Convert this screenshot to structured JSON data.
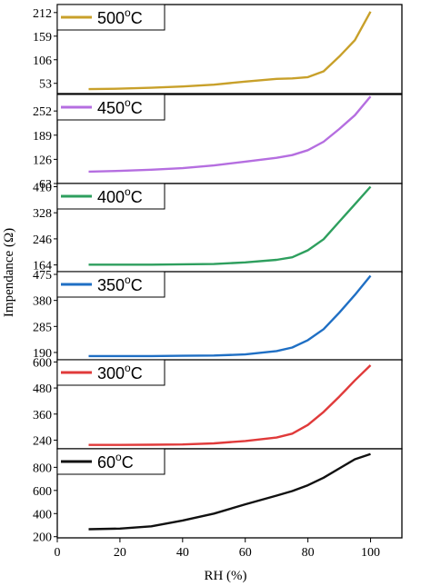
{
  "chart_data": {
    "type": "line",
    "layout": "stacked-panels",
    "xlabel": "RH (%)",
    "ylabel": "Impendance (Ω)",
    "xlim": [
      0,
      110
    ],
    "xticks": [
      0,
      20,
      40,
      60,
      80,
      100
    ],
    "x": [
      10,
      20,
      30,
      40,
      50,
      60,
      70,
      75,
      80,
      85,
      90,
      95,
      100
    ],
    "panels": [
      {
        "name": "500°C",
        "legend": {
          "base": "500",
          "unit_sup": "o",
          "unit": "C"
        },
        "color": "#c8a02a",
        "ylim": [
          30,
          230
        ],
        "yticks": [
          53,
          106,
          159,
          212
        ],
        "values": [
          40,
          41,
          43,
          46,
          50,
          57,
          63,
          64,
          67,
          80,
          113,
          150,
          214
        ]
      },
      {
        "name": "450°C",
        "legend": {
          "base": "450",
          "unit_sup": "o",
          "unit": "C"
        },
        "color": "#b56ee0",
        "ylim": [
          63,
          295
        ],
        "yticks": [
          63,
          126,
          189,
          252
        ],
        "values": [
          94,
          96,
          99,
          103,
          110,
          120,
          130,
          137,
          150,
          172,
          205,
          241,
          290
        ]
      },
      {
        "name": "400°C",
        "legend": {
          "base": "400",
          "unit_sup": "o",
          "unit": "C"
        },
        "color": "#2e9f5e",
        "ylim": [
          140,
          420
        ],
        "yticks": [
          164,
          246,
          328,
          410
        ],
        "values": [
          165,
          165,
          165,
          166,
          167,
          172,
          180,
          188,
          210,
          245,
          300,
          355,
          410
        ]
      },
      {
        "name": "350°C",
        "legend": {
          "base": "350",
          "unit_sup": "o",
          "unit": "C"
        },
        "color": "#1f6fc4",
        "ylim": [
          160,
          485
        ],
        "yticks": [
          190,
          285,
          380,
          475
        ],
        "values": [
          177,
          177,
          177,
          178,
          179,
          183,
          195,
          208,
          235,
          275,
          335,
          400,
          470
        ]
      },
      {
        "name": "300°C",
        "legend": {
          "base": "300",
          "unit_sup": "o",
          "unit": "C"
        },
        "color": "#e03a3a",
        "ylim": [
          200,
          610
        ],
        "yticks": [
          240,
          360,
          480,
          600
        ],
        "values": [
          218,
          218,
          219,
          220,
          225,
          236,
          252,
          270,
          310,
          370,
          440,
          515,
          585
        ]
      },
      {
        "name": "60°C",
        "legend": {
          "base": "60",
          "unit_sup": "o",
          "unit": "C"
        },
        "color": "#111111",
        "ylim": [
          190,
          960
        ],
        "yticks": [
          200,
          400,
          600,
          800
        ],
        "values": [
          265,
          270,
          290,
          340,
          400,
          480,
          555,
          595,
          645,
          710,
          790,
          870,
          915
        ]
      }
    ]
  }
}
